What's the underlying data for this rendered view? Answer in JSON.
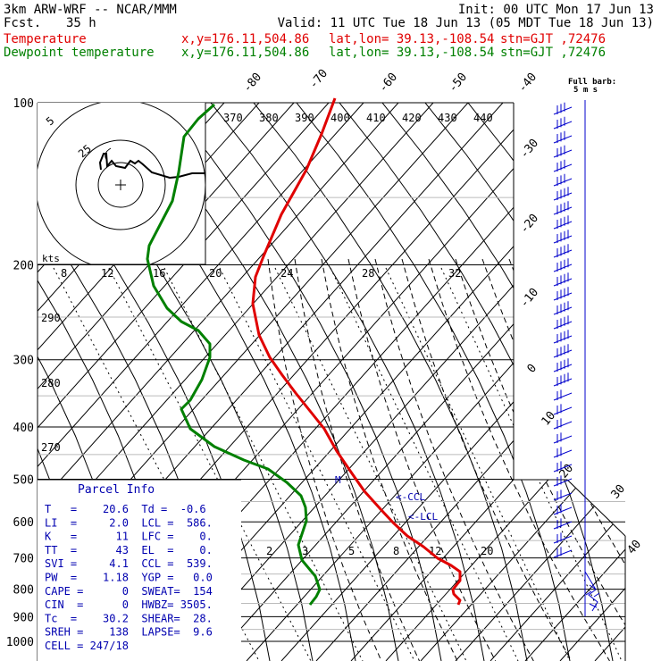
{
  "header": {
    "model": "3km ARW-WRF -- NCAR/MMM",
    "init": "Init: 00 UTC Mon 17 Jun 13",
    "fcst_label": "Fcst.",
    "fcst_value": "35 h",
    "valid": "Valid: 11 UTC Tue 18 Jun 13 (05 MDT Tue 18 Jun 13)",
    "temperature_label": "Temperature",
    "dewpoint_label": "Dewpoint temperature",
    "xy": "x,y=176.11,504.86",
    "latlon": "lat,lon= 39.13,-108.54",
    "station": "stn=GJT ,72476"
  },
  "colors": {
    "temperature": "#e00000",
    "dewpoint": "#008000",
    "wind": "#0000cc",
    "axes": "#000000"
  },
  "chart_data": {
    "type": "line",
    "subtype": "skew-T log-P sounding",
    "y_axis": {
      "label": "",
      "scale": "log",
      "ticks": [
        100,
        200,
        300,
        400,
        500,
        600,
        700,
        800,
        900,
        1000
      ]
    },
    "isotherm_labels": [
      "-80",
      "-70",
      "-60",
      "-50",
      "-40",
      "-30",
      "-20",
      "-10",
      "0",
      "10",
      "20",
      "30",
      "40"
    ],
    "theta_labels": [
      "370",
      "380",
      "390",
      "400",
      "410",
      "420",
      "430",
      "440"
    ],
    "mixing_ratio_labels_upper": [
      "8",
      "12",
      "16",
      "20",
      "24",
      "28",
      "32"
    ],
    "mixing_ratio_labels_lower": [
      "2",
      "3",
      "5",
      "8",
      "12",
      "20"
    ],
    "adiabat_labels": [
      "290",
      "280",
      "270"
    ],
    "series": [
      {
        "name": "Temperature",
        "points": [
          [
            375,
            110
          ],
          [
            360,
            150
          ],
          [
            343,
            190
          ],
          [
            315,
            240
          ],
          [
            295,
            287
          ],
          [
            286,
            310
          ],
          [
            283,
            340
          ],
          [
            290,
            375
          ],
          [
            302,
            400
          ],
          [
            316,
            420
          ],
          [
            331,
            440
          ],
          [
            347,
            460
          ],
          [
            363,
            480
          ],
          [
            377,
            505
          ],
          [
            394,
            530
          ],
          [
            408,
            550
          ],
          [
            426,
            570
          ],
          [
            440,
            585
          ],
          [
            456,
            600
          ],
          [
            474,
            612
          ],
          [
            490,
            625
          ],
          [
            505,
            633
          ],
          [
            515,
            640
          ],
          [
            515,
            650
          ],
          [
            507,
            660
          ],
          [
            508,
            665
          ],
          [
            515,
            672
          ],
          [
            513,
            677
          ]
        ]
      },
      {
        "name": "Dewpoint temperature",
        "points": [
          [
            240,
            117
          ],
          [
            222,
            133
          ],
          [
            206,
            153
          ],
          [
            200,
            193
          ],
          [
            193,
            225
          ],
          [
            180,
            250
          ],
          [
            167,
            275
          ],
          [
            165,
            290
          ],
          [
            172,
            320
          ],
          [
            187,
            345
          ],
          [
            203,
            360
          ],
          [
            222,
            370
          ],
          [
            235,
            385
          ],
          [
            235,
            400
          ],
          [
            226,
            425
          ],
          [
            213,
            448
          ],
          [
            203,
            458
          ],
          [
            213,
            480
          ],
          [
            240,
            500
          ],
          [
            273,
            515
          ],
          [
            300,
            525
          ],
          [
            321,
            540
          ],
          [
            337,
            555
          ],
          [
            342,
            568
          ],
          [
            343,
            583
          ],
          [
            338,
            598
          ],
          [
            334,
            610
          ],
          [
            338,
            627
          ],
          [
            353,
            645
          ],
          [
            358,
            660
          ],
          [
            354,
            668
          ],
          [
            347,
            677
          ]
        ]
      }
    ]
  },
  "hodograph": {
    "units_label": "kts",
    "ring_labels": [
      "5",
      "25"
    ]
  },
  "wind_barbs": {
    "caption_line1": "Full barb:",
    "caption_line2": "5 m s"
  },
  "level_markers": {
    "ccl": "<-CCL",
    "lcl": "<-LCL",
    "m": "M"
  },
  "parcel_info": {
    "title": "Parcel Info",
    "rows": [
      "T   =    20.6  Td =  -0.6",
      "LI  =     2.0  LCL =  586.",
      "K   =      11  LFC =    0.",
      "TT  =      43  EL  =    0.",
      "SVI =     4.1  CCL =  539.",
      "PW  =    1.18  YGP =   0.0",
      "CAPE =      0  SWEAT=  154",
      "CIN  =      0  HWBZ= 3505.",
      "Tc  =    30.2  SHEAR=  28.",
      "SREH =    138  LAPSE=  9.6",
      "CELL = 247/18"
    ]
  }
}
